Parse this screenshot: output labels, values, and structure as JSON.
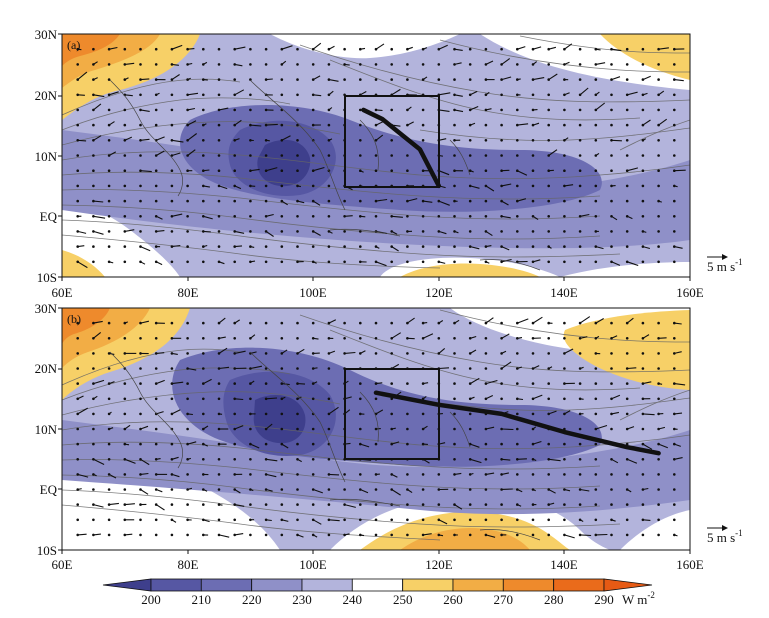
{
  "figure": {
    "panels": [
      {
        "label": "(a)",
        "key": "a"
      },
      {
        "label": "(b)",
        "key": "b"
      }
    ],
    "lat_ticks": [
      "30N",
      "20N",
      "10N",
      "EQ",
      "10S"
    ],
    "lon_ticks": [
      "60E",
      "80E",
      "100E",
      "120E",
      "140E",
      "160E"
    ],
    "vector_reference": {
      "text": "5 m s",
      "superscript": "-1"
    },
    "colorbar": {
      "values": [
        "200",
        "210",
        "220",
        "230",
        "240",
        "250",
        "260",
        "270",
        "280",
        "290"
      ],
      "unit": "W m",
      "unit_superscript": "-2",
      "colors": [
        "#3e3f8c",
        "#5657a3",
        "#6c6db3",
        "#8f90c8",
        "#b3b4dc",
        "#ffffff",
        "#f7d067",
        "#f2ad45",
        "#ee8a2c",
        "#ea6b1b",
        "#e65a14"
      ]
    },
    "box_region": {
      "lon": [
        105,
        120
      ],
      "lat": [
        5,
        20
      ]
    },
    "track_a": [
      [
        108,
        17.5
      ],
      [
        111,
        16.0
      ],
      [
        114,
        13.5
      ],
      [
        117,
        11.0
      ],
      [
        120,
        5.0
      ]
    ],
    "track_b": [
      [
        110,
        16.0
      ],
      [
        120,
        14.0
      ],
      [
        130,
        12.5
      ],
      [
        140,
        9.5
      ],
      [
        150,
        7.0
      ],
      [
        155,
        6.0
      ]
    ]
  },
  "chart_data": {
    "type": "heatmap",
    "description_fields": {
      "variable_unit": "W m-2",
      "contour_levels": [
        200,
        210,
        220,
        230,
        240,
        250,
        260,
        270,
        280,
        290
      ]
    },
    "x_range": [
      60,
      160
    ],
    "y_range": [
      -10,
      30
    ],
    "panels": [
      "(a)",
      "(b)"
    ]
  }
}
